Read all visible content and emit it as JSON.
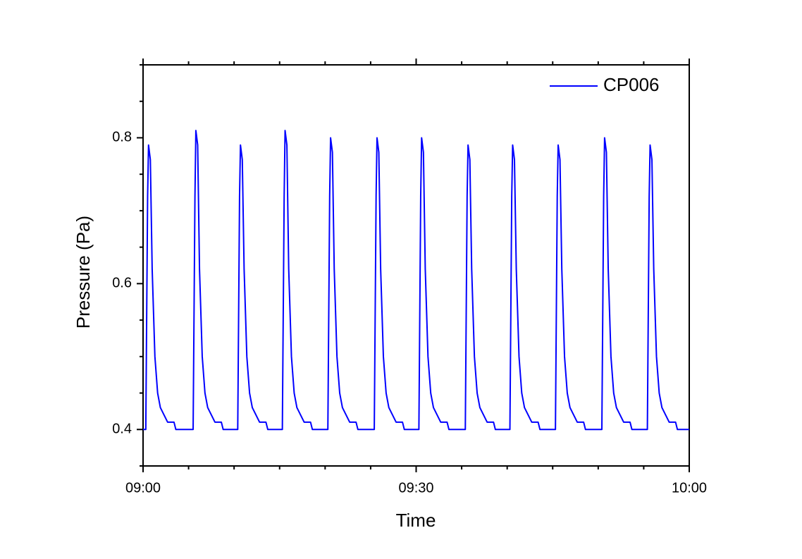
{
  "chart_data": {
    "type": "line",
    "xlabel": "Time",
    "ylabel": "Pressure (Pa)",
    "x": [
      0,
      0.3,
      0.5,
      0.6,
      0.8,
      1.0,
      1.3,
      1.6,
      1.9,
      2.3,
      2.7,
      3.4,
      3.6,
      5.5,
      5.7,
      5.8,
      6.0,
      6.2,
      6.5,
      6.8,
      7.1,
      7.5,
      7.9,
      8.6,
      8.8,
      10.4,
      10.6,
      10.7,
      10.9,
      11.1,
      11.4,
      11.7,
      12.0,
      12.4,
      12.8,
      13.5,
      13.7,
      15.3,
      15.5,
      15.6,
      15.8,
      16.0,
      16.3,
      16.6,
      16.9,
      17.3,
      17.7,
      18.4,
      18.6,
      20.3,
      20.5,
      20.6,
      20.8,
      21.0,
      21.3,
      21.6,
      21.9,
      22.3,
      22.7,
      23.4,
      23.6,
      25.4,
      25.6,
      25.7,
      25.9,
      26.1,
      26.4,
      26.7,
      27.0,
      27.4,
      27.8,
      28.5,
      28.7,
      30.3,
      30.5,
      30.6,
      30.8,
      31.0,
      31.3,
      31.6,
      31.9,
      32.3,
      32.7,
      33.4,
      33.6,
      35.4,
      35.6,
      35.7,
      35.9,
      36.1,
      36.4,
      36.7,
      37.0,
      37.4,
      37.8,
      38.5,
      38.7,
      40.3,
      40.5,
      40.6,
      40.8,
      41.0,
      41.3,
      41.6,
      41.9,
      42.3,
      42.7,
      43.4,
      43.6,
      45.3,
      45.5,
      45.6,
      45.8,
      46.0,
      46.3,
      46.6,
      46.9,
      47.3,
      47.7,
      48.4,
      48.6,
      50.4,
      50.6,
      50.7,
      50.9,
      51.1,
      51.4,
      51.7,
      52.0,
      52.4,
      52.8,
      53.5,
      53.7,
      55.4,
      55.6,
      55.7,
      55.9,
      56.1,
      56.4,
      56.7,
      57.0,
      57.4,
      57.8,
      58.5,
      58.7,
      60
    ],
    "series": [
      {
        "name": "CP006",
        "color": "#0000ff",
        "values": [
          0.4,
          0.4,
          0.72,
          0.79,
          0.77,
          0.62,
          0.5,
          0.45,
          0.43,
          0.42,
          0.41,
          0.41,
          0.4,
          0.4,
          0.72,
          0.81,
          0.79,
          0.62,
          0.5,
          0.45,
          0.43,
          0.42,
          0.41,
          0.41,
          0.4,
          0.4,
          0.72,
          0.79,
          0.77,
          0.62,
          0.5,
          0.45,
          0.43,
          0.42,
          0.41,
          0.41,
          0.4,
          0.4,
          0.72,
          0.81,
          0.79,
          0.62,
          0.5,
          0.45,
          0.43,
          0.42,
          0.41,
          0.41,
          0.4,
          0.4,
          0.72,
          0.8,
          0.78,
          0.62,
          0.5,
          0.45,
          0.43,
          0.42,
          0.41,
          0.41,
          0.4,
          0.4,
          0.72,
          0.8,
          0.78,
          0.62,
          0.5,
          0.45,
          0.43,
          0.42,
          0.41,
          0.41,
          0.4,
          0.4,
          0.72,
          0.8,
          0.78,
          0.62,
          0.5,
          0.45,
          0.43,
          0.42,
          0.41,
          0.41,
          0.4,
          0.4,
          0.72,
          0.79,
          0.77,
          0.62,
          0.5,
          0.45,
          0.43,
          0.42,
          0.41,
          0.41,
          0.4,
          0.4,
          0.72,
          0.79,
          0.77,
          0.62,
          0.5,
          0.45,
          0.43,
          0.42,
          0.41,
          0.41,
          0.4,
          0.4,
          0.72,
          0.79,
          0.77,
          0.62,
          0.5,
          0.45,
          0.43,
          0.42,
          0.41,
          0.41,
          0.4,
          0.4,
          0.72,
          0.8,
          0.78,
          0.62,
          0.5,
          0.45,
          0.43,
          0.42,
          0.41,
          0.41,
          0.4,
          0.4,
          0.72,
          0.79,
          0.77,
          0.62,
          0.5,
          0.45,
          0.43,
          0.42,
          0.41,
          0.41,
          0.4,
          0.4
        ]
      }
    ],
    "xlim": [
      0,
      60
    ],
    "xticks": [
      {
        "value": 0,
        "label": "09:00"
      },
      {
        "value": 30,
        "label": "09:30"
      },
      {
        "value": 60,
        "label": "10:00"
      }
    ],
    "xminorticks": [
      5,
      10,
      15,
      20,
      25,
      35,
      40,
      45,
      50,
      55
    ],
    "ylim": [
      0.35,
      0.9
    ],
    "yticks": [
      0.4,
      0.6,
      0.8
    ],
    "yminorticks": [
      0.35,
      0.45,
      0.5,
      0.55,
      0.65,
      0.7,
      0.75,
      0.85,
      0.9
    ],
    "legend": "upper right",
    "grid": false
  }
}
